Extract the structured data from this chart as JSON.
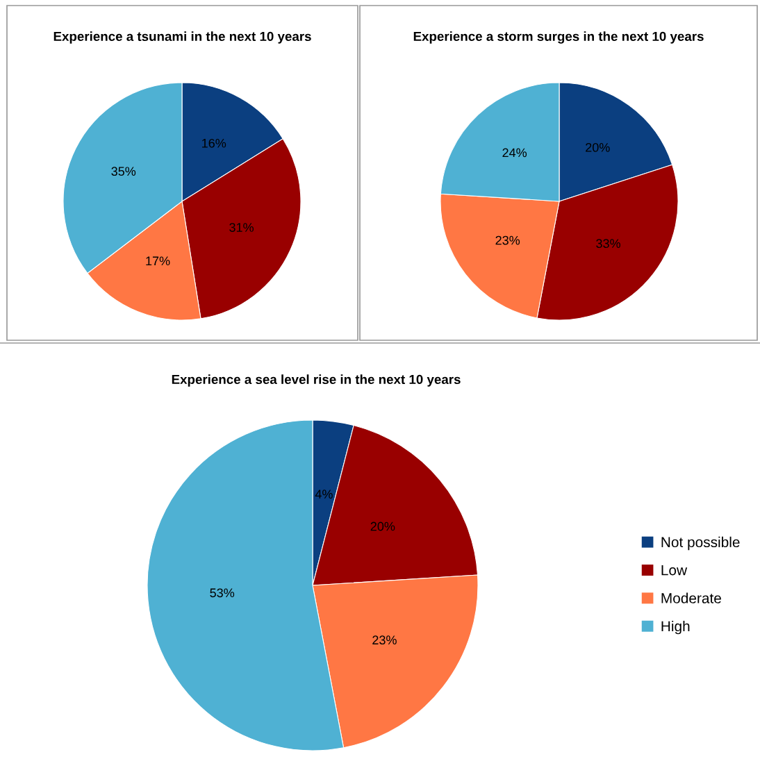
{
  "chart_data": [
    {
      "type": "pie",
      "title": "Experience a tsunami in the next 10 years",
      "categories": [
        null,
        null,
        null,
        null
      ],
      "values": [
        16,
        31,
        17,
        35
      ],
      "colors": [
        "#0b3f80",
        "#990000",
        "#ff7744",
        "#4fb1d3"
      ],
      "value_labels": [
        "16%",
        "31%",
        "17%",
        "35%"
      ],
      "legend": false
    },
    {
      "type": "pie",
      "title": "Experience a storm surges in the next 10 years",
      "categories": [
        null,
        null,
        null,
        null
      ],
      "values": [
        20,
        33,
        23,
        24
      ],
      "colors": [
        "#0b3f80",
        "#990000",
        "#ff7744",
        "#4fb1d3"
      ],
      "value_labels": [
        "20%",
        "33%",
        "23%",
        "24%"
      ],
      "legend": false
    },
    {
      "type": "pie",
      "title": "Experience a sea level rise in the next 10 years",
      "categories": [
        "Not possible",
        "Low",
        "Moderate",
        "High"
      ],
      "values": [
        4,
        20,
        23,
        53
      ],
      "colors": [
        "#0b3f80",
        "#990000",
        "#ff7744",
        "#4fb1d3"
      ],
      "value_labels": [
        "4%",
        "20%",
        "23%",
        "53%"
      ],
      "legend": "right"
    }
  ]
}
